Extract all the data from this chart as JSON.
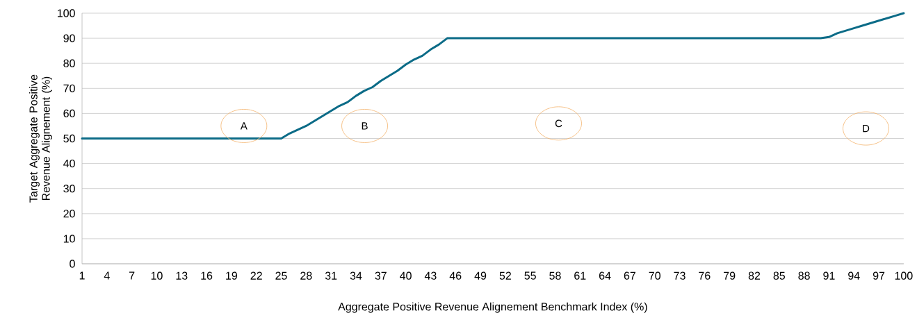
{
  "chart_data": {
    "type": "line",
    "xlabel": "Aggregate Positive Revenue Alignement Benchmark Index (%)",
    "ylabel": "Target Aggregate Positive Revenue Alignement (%)",
    "x": [
      1,
      25,
      26,
      27,
      28,
      29,
      30,
      31,
      32,
      33,
      34,
      35,
      36,
      37,
      38,
      39,
      40,
      41,
      42,
      43,
      44,
      45,
      90,
      91,
      92,
      93,
      94,
      95,
      96,
      97,
      98,
      99,
      100
    ],
    "series": [
      {
        "color": "#0b6b87",
        "values": [
          50,
          50,
          52,
          53.5,
          55,
          57,
          59,
          61,
          63,
          64.5,
          67,
          69,
          70.5,
          73,
          75,
          77,
          79.5,
          81.5,
          83,
          85.5,
          87.5,
          90,
          90,
          90.5,
          92,
          93,
          94,
          95,
          96,
          97,
          98,
          99,
          100
        ]
      }
    ],
    "xlim": [
      1,
      100
    ],
    "xticks": [
      1,
      4,
      7,
      10,
      13,
      16,
      19,
      22,
      25,
      28,
      31,
      34,
      37,
      40,
      43,
      46,
      49,
      52,
      55,
      58,
      61,
      64,
      67,
      70,
      73,
      76,
      79,
      82,
      85,
      88,
      91,
      94,
      97,
      100
    ],
    "ylim": [
      0,
      100
    ],
    "yticks": [
      0,
      10,
      20,
      30,
      40,
      50,
      60,
      70,
      80,
      90,
      100
    ],
    "grid": "y",
    "marker": "none",
    "line_style": "solid",
    "legend": false,
    "annotations": [
      "A",
      "B",
      "C",
      "D"
    ]
  }
}
